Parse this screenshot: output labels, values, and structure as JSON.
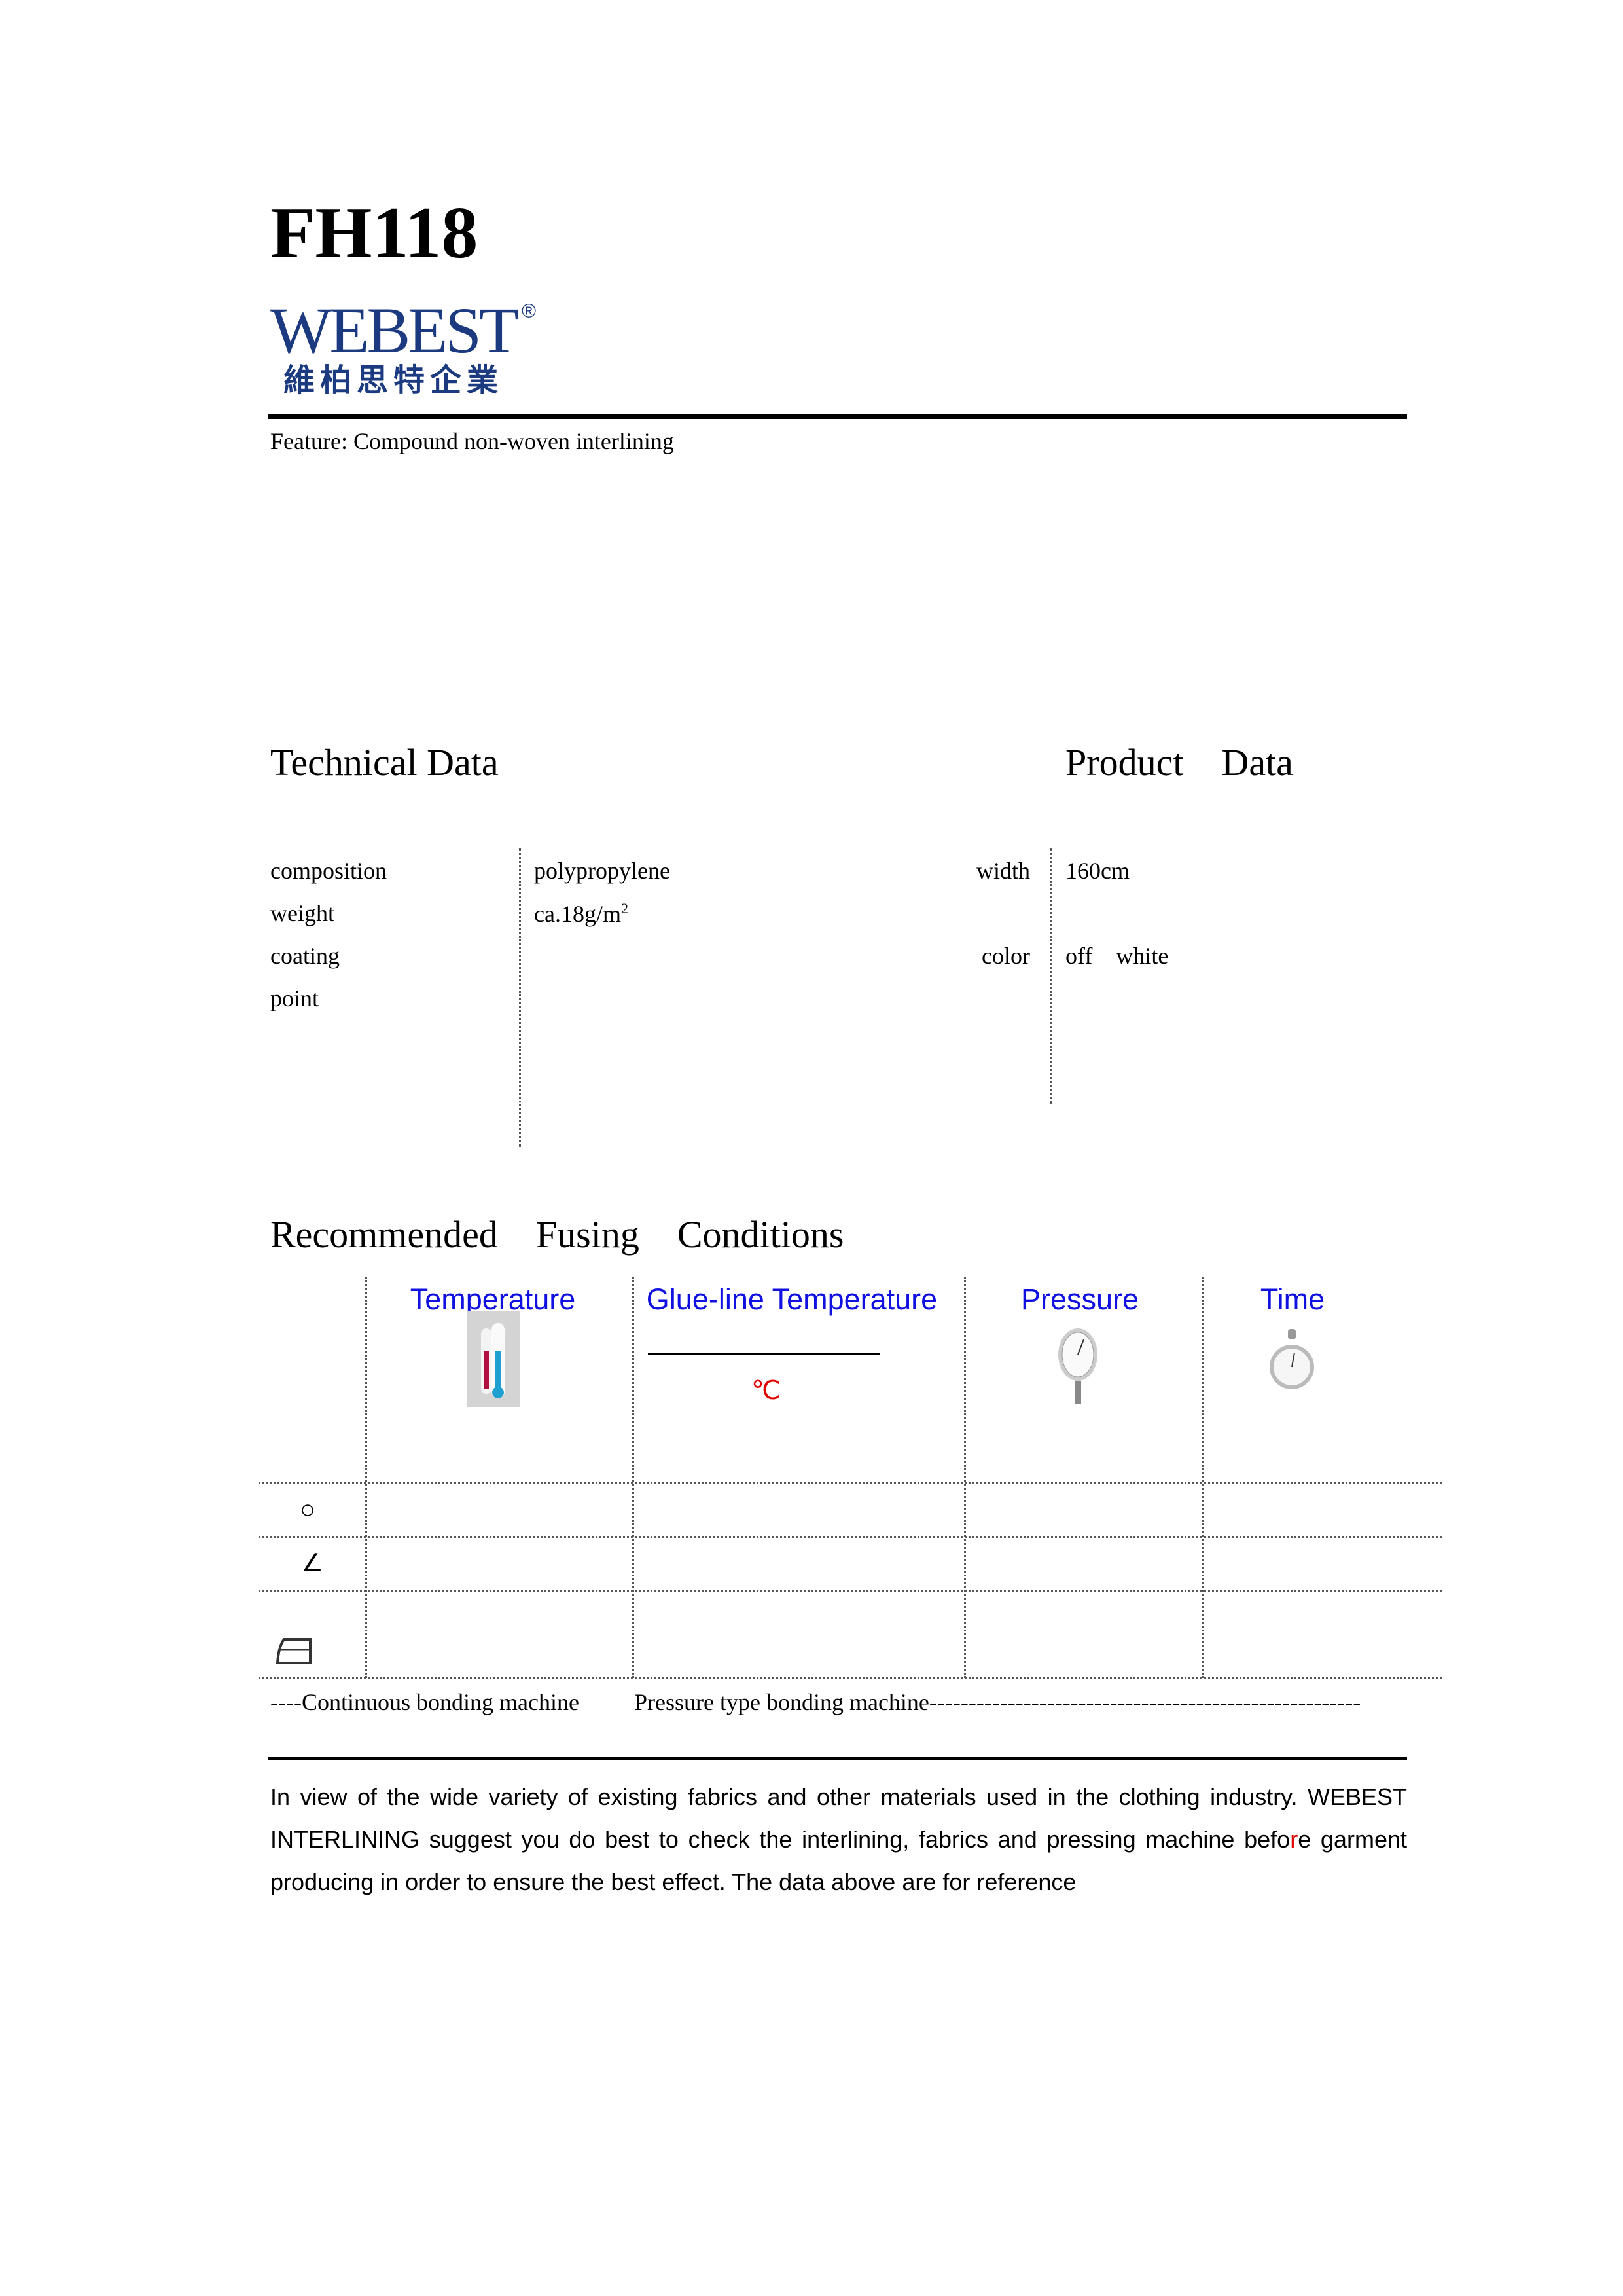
{
  "title": "FH118",
  "logo": {
    "name_en": "WEBEST",
    "registered": "®",
    "name_cn": "維柏思特企業",
    "color": "#1b3a80"
  },
  "feature": "Feature: Compound non-woven interlining",
  "technical_data": {
    "heading": "Technical Data",
    "rows": [
      {
        "label": "composition",
        "value": "polypropylene"
      },
      {
        "label": "weight",
        "value": "ca.18g/m",
        "sup": "2"
      },
      {
        "label": "coating",
        "value": ""
      },
      {
        "label": "point",
        "value": ""
      }
    ]
  },
  "product_data": {
    "heading": "Product    Data",
    "rows": [
      {
        "label": "width",
        "value": "160cm"
      },
      {
        "label": "color",
        "value": "off    white"
      }
    ]
  },
  "fusing": {
    "heading": "Recommended    Fusing    Conditions",
    "columns": [
      {
        "label": "Temperature",
        "icon": "thermometer-icon"
      },
      {
        "label": "Glue-line Temperature",
        "unit": "℃"
      },
      {
        "label": "Pressure",
        "icon": "pressure-gauge-icon"
      },
      {
        "label": "Time",
        "icon": "stopwatch-icon"
      }
    ],
    "row_symbols": [
      "○",
      "∠",
      "iron-icon"
    ],
    "header_color": "#1010e0",
    "unit_color": "#e00000"
  },
  "machine_note": {
    "continuous": "----Continuous bonding machine",
    "pressure": "Pressure type bonding machine-------------------------------------------------------"
  },
  "disclaimer": {
    "part1": "In view of the wide variety of existing fabrics and other materials used in the clothing industry. WEBEST INTERLINING suggest you do best to check the interlining, fabrics and pressing machine befo",
    "red": "r",
    "part2": "e garment producing in order to ensure the best effect. The data above are for reference"
  }
}
